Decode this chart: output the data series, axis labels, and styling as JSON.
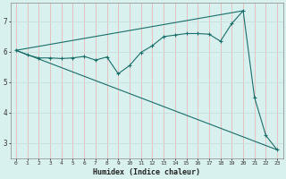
{
  "xlabel": "Humidex (Indice chaleur)",
  "bg_color": "#d8f0ee",
  "grid_color_v": "#e8b8b8",
  "grid_color_h": "#c8dede",
  "line_color": "#1a6e6a",
  "xlim": [
    -0.5,
    23.5
  ],
  "ylim": [
    2.5,
    7.6
  ],
  "yticks": [
    3,
    4,
    5,
    6,
    7
  ],
  "xticks": [
    0,
    1,
    2,
    3,
    4,
    5,
    6,
    7,
    8,
    9,
    10,
    11,
    12,
    13,
    14,
    15,
    16,
    17,
    18,
    19,
    20,
    21,
    22,
    23
  ],
  "series": [
    [
      0,
      6.05
    ],
    [
      1,
      5.9
    ],
    [
      2,
      5.8
    ],
    [
      3,
      5.8
    ],
    [
      4,
      5.78
    ],
    [
      5,
      5.8
    ],
    [
      6,
      5.85
    ],
    [
      7,
      5.73
    ],
    [
      8,
      5.83
    ],
    [
      9,
      5.28
    ],
    [
      10,
      5.55
    ],
    [
      11,
      5.98
    ],
    [
      12,
      6.2
    ],
    [
      13,
      6.5
    ],
    [
      14,
      6.55
    ],
    [
      15,
      6.6
    ],
    [
      16,
      6.6
    ],
    [
      17,
      6.58
    ],
    [
      18,
      6.35
    ],
    [
      19,
      6.93
    ],
    [
      20,
      7.35
    ],
    [
      21,
      4.5
    ],
    [
      22,
      3.25
    ],
    [
      23,
      2.78
    ]
  ],
  "line_upper": [
    [
      0,
      6.05
    ],
    [
      20,
      7.35
    ]
  ],
  "line_lower": [
    [
      0,
      6.05
    ],
    [
      23,
      2.78
    ]
  ]
}
